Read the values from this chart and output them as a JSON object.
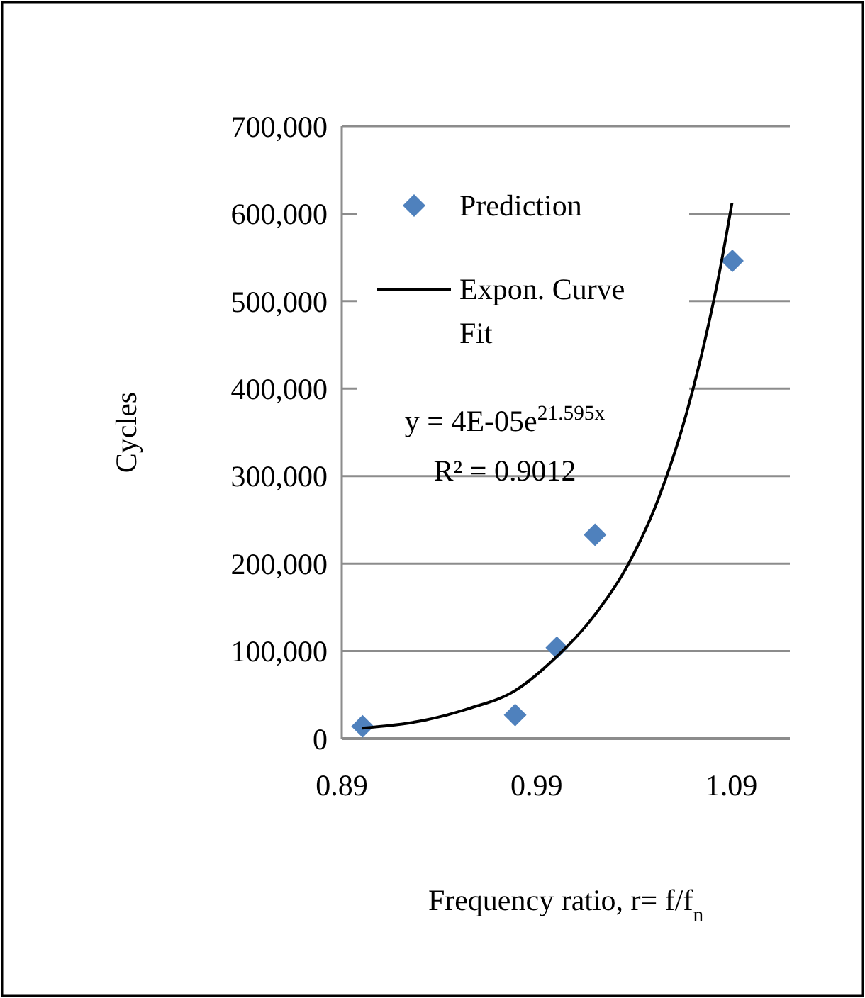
{
  "chart_data": {
    "type": "scatter",
    "xlabel": "Frequency ratio, r= f/f$_{n}$",
    "ylabel": "Cycles",
    "xlim": [
      0.89,
      1.12
    ],
    "xticks": [
      0.89,
      0.99,
      1.09
    ],
    "ylim": [
      0,
      700000
    ],
    "yticks": [
      0,
      {
        "value": 100000,
        "label": "100,000"
      },
      {
        "value": 200000,
        "label": "200,000"
      },
      {
        "value": 300000,
        "label": "300,000"
      },
      {
        "value": 400000,
        "label": "400,000"
      },
      {
        "value": 500000,
        "label": "500,000"
      },
      {
        "value": 600000,
        "label": "600,000"
      },
      {
        "value": 700000,
        "label": "700,000"
      }
    ],
    "grid": "y",
    "legend": "top",
    "series": [
      {
        "name": "Prediction",
        "marker": "diamond",
        "color": "#4f81bd",
        "x": [
          0.9007,
          0.979,
          1.0004,
          1.02,
          1.0905
        ],
        "values": [
          14000,
          27000,
          104000,
          233000,
          546000
        ]
      },
      {
        "name": "Expon. Curve Fit",
        "type": "line",
        "color": "#000000",
        "marker": "none",
        "line_style": "solid",
        "x": [
          0.9005,
          0.9304,
          0.9547,
          0.9791,
          1.0,
          1.018,
          1.0375,
          1.052,
          1.0666,
          1.0764,
          1.0837,
          1.0903
        ],
        "values": [
          12000,
          20000,
          34000,
          55000,
          93000,
          136000,
          201000,
          271000,
          369000,
          455000,
          531000,
          612000
        ]
      }
    ],
    "annotations": [
      "y = 4E-05e$^{21.595x}$",
      "R² = 0.9012"
    ]
  }
}
